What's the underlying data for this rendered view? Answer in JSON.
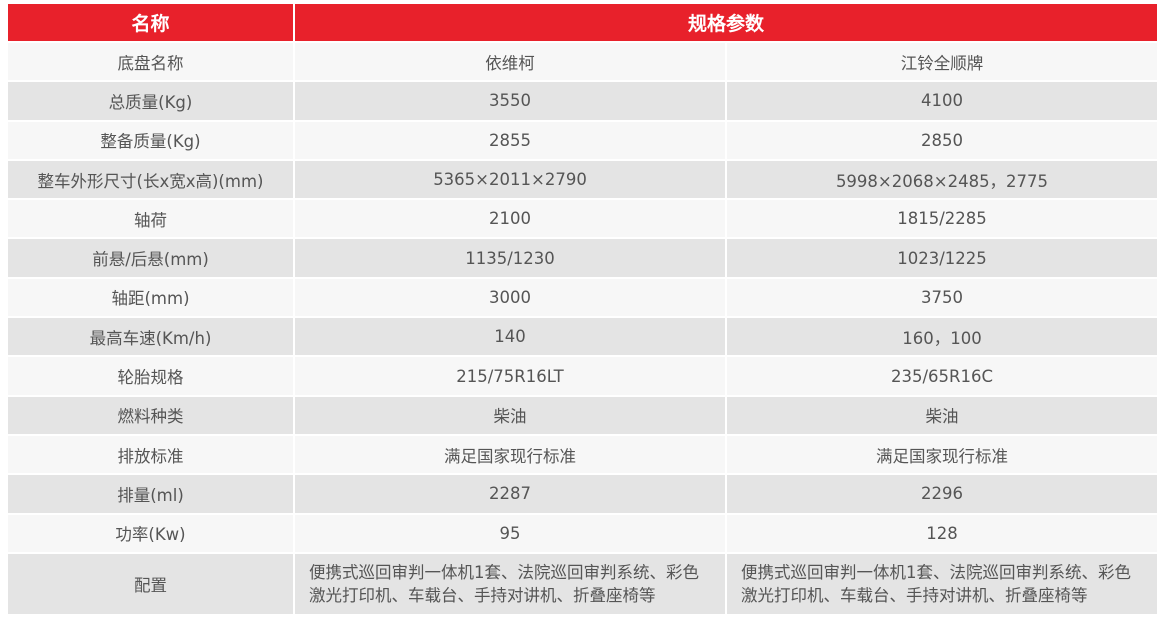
{
  "table": {
    "header": [
      "名称",
      "规格参数"
    ],
    "rows": [
      [
        "底盘名称",
        "依维柯",
        "江铃全顺牌"
      ],
      [
        "总质量(Kg)",
        "3550",
        "4100"
      ],
      [
        "整备质量(Kg)",
        "2855",
        "2850"
      ],
      [
        "整车外形尺寸(长x宽x高)(mm)",
        "5365×2011×2790",
        "5998×2068×2485，2775"
      ],
      [
        "轴荷",
        "2100",
        "1815/2285"
      ],
      [
        "前悬/后悬(mm)",
        "1135/1230",
        "1023/1225"
      ],
      [
        "轴距(mm)",
        "3000",
        "3750"
      ],
      [
        "最高车速(Km/h)",
        "140",
        "160，100"
      ],
      [
        "轮胎规格",
        "215/75R16LT",
        "235/65R16C"
      ],
      [
        "燃料种类",
        "柴油",
        "柴油"
      ],
      [
        "排放标准",
        "满足国家现行标准",
        "满足国家现行标准"
      ],
      [
        "排量(ml)",
        "2287",
        "2296"
      ],
      [
        "功率(Kw)",
        "95",
        "128"
      ],
      [
        "配置",
        "便携式巡回审判一体机1套、法院巡回审判系统、彩色激光打印机、车载台、手持对讲机、折叠座椅等",
        "便携式巡回审判一体机1套、法院巡回审判系统、彩色激光打印机、车载台、手持对讲机、折叠座椅等"
      ]
    ]
  }
}
